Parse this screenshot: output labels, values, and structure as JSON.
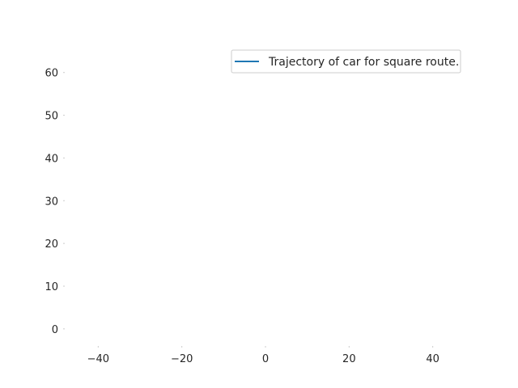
{
  "chart_data": {
    "type": "line",
    "title": "",
    "xlabel": "",
    "ylabel": "",
    "xlim": [
      -48,
      48
    ],
    "ylim": [
      -4,
      66
    ],
    "xticks": [
      -40,
      -20,
      0,
      20,
      40
    ],
    "xtick_labels": [
      "−40",
      "−20",
      "0",
      "20",
      "40"
    ],
    "yticks": [
      0,
      10,
      20,
      30,
      40,
      50,
      60
    ],
    "ytick_labels": [
      "0",
      "10",
      "20",
      "30",
      "40",
      "50",
      "60"
    ],
    "grid": false,
    "legend_position": "upper right",
    "series": [
      {
        "name": "Trajectory of car for square route.",
        "color": "#1f77b4",
        "x": [],
        "y": []
      }
    ]
  }
}
